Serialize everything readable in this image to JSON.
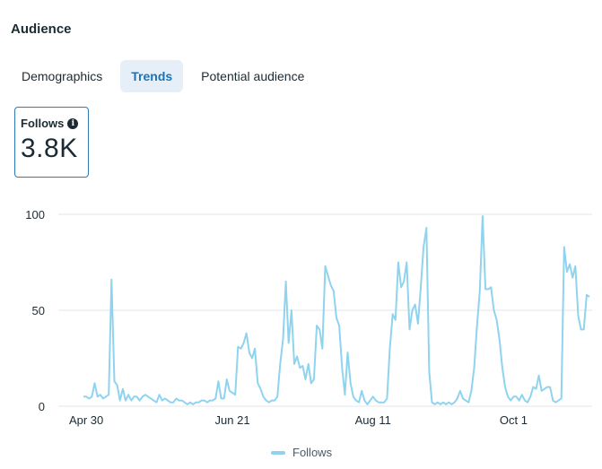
{
  "header": {
    "title": "Audience"
  },
  "tabs": [
    {
      "label": "Demographics",
      "active": false
    },
    {
      "label": "Trends",
      "active": true
    },
    {
      "label": "Potential audience",
      "active": false
    }
  ],
  "metric": {
    "label": "Follows",
    "info_icon": "info-icon",
    "value": "3.8K"
  },
  "colors": {
    "line": "#8fd3ef",
    "accent": "#1a73b8",
    "grid": "#e4e6e8"
  },
  "chart_data": {
    "type": "line",
    "title": "",
    "xlabel": "",
    "ylabel": "",
    "ylim": [
      0,
      100
    ],
    "yticks": [
      0,
      50,
      100
    ],
    "xticks": [
      {
        "label": "Apr 30",
        "index": 1
      },
      {
        "label": "Jun 21",
        "index": 53
      },
      {
        "label": "Aug 11",
        "index": 103
      },
      {
        "label": "Oct 1",
        "index": 153
      }
    ],
    "grid": true,
    "legend_position": "bottom-center",
    "series": [
      {
        "name": "Follows",
        "values": [
          5,
          5,
          4,
          5,
          12,
          5,
          6,
          4,
          5,
          6,
          66,
          13,
          11,
          3,
          9,
          3,
          6,
          3,
          5,
          5,
          3,
          5,
          6,
          5,
          4,
          3,
          2,
          6,
          3,
          4,
          3,
          2,
          2,
          4,
          3,
          3,
          2,
          1,
          2,
          1,
          2,
          2,
          3,
          3,
          2,
          3,
          3,
          4,
          13,
          4,
          4,
          14,
          8,
          7,
          6,
          31,
          30,
          33,
          38,
          28,
          25,
          30,
          12,
          9,
          5,
          3,
          2,
          3,
          3,
          5,
          22,
          35,
          65,
          33,
          50,
          22,
          26,
          20,
          21,
          14,
          22,
          12,
          14,
          42,
          40,
          30,
          73,
          68,
          63,
          60,
          46,
          42,
          20,
          6,
          28,
          12,
          5,
          3,
          2,
          8,
          3,
          1,
          3,
          5,
          3,
          2,
          2,
          2,
          4,
          30,
          48,
          45,
          75,
          62,
          65,
          75,
          40,
          50,
          53,
          43,
          62,
          83,
          93,
          18,
          2,
          1,
          2,
          1,
          2,
          1,
          2,
          1,
          2,
          4,
          8,
          4,
          3,
          2,
          8,
          20,
          42,
          60,
          99,
          61,
          61,
          62,
          50,
          45,
          35,
          20,
          10,
          5,
          3,
          5,
          5,
          3,
          6,
          3,
          2,
          5,
          10,
          9,
          16,
          8,
          9,
          10,
          10,
          3,
          2,
          3,
          4,
          83,
          70,
          74,
          67,
          73,
          47,
          40,
          40,
          58,
          57
        ]
      }
    ]
  },
  "legend": {
    "label": "Follows"
  }
}
